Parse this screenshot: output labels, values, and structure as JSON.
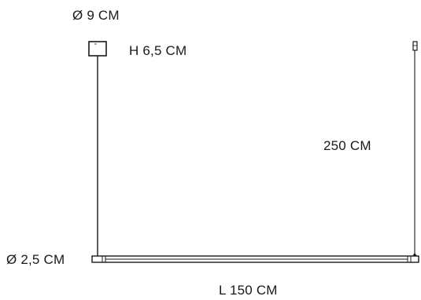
{
  "dimensions": {
    "canopy_diameter": "Ø 9 CM",
    "canopy_height": "H 6,5 CM",
    "cable_length": "250 CM",
    "bar_diameter": "Ø 2,5 CM",
    "bar_length": "L 150 CM"
  },
  "colors": {
    "line": "#1a1a1a",
    "background": "#ffffff"
  }
}
